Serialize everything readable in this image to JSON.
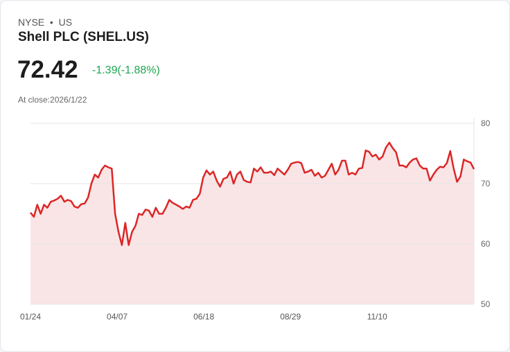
{
  "header": {
    "exchange": "NYSE",
    "sep": "•",
    "country": "US",
    "title": "Shell PLC (SHEL.US)",
    "price": "72.42",
    "change": "-1.39(-1.88%)",
    "close_label": "At close:2026/1/22"
  },
  "colors": {
    "line": "#dc2626",
    "fill": "#f9e5e6",
    "change": "#1ea650"
  },
  "chart_data": {
    "type": "area",
    "title": "",
    "xlabel": "",
    "ylabel": "",
    "ylim": [
      50,
      80
    ],
    "yticks": [
      "80",
      "70",
      "60",
      "50"
    ],
    "ytick_values": [
      80,
      70,
      60,
      50
    ],
    "xticks": [
      "01/24",
      "04/07",
      "06/18",
      "08/29",
      "11/10"
    ],
    "xtick_index": [
      0,
      25.6,
      51.2,
      76.8,
      102.4
    ],
    "values": [
      65.2,
      64.5,
      66.5,
      65,
      66.5,
      66,
      67,
      67.2,
      67.5,
      68,
      67,
      67.3,
      67.1,
      66.2,
      66,
      66.6,
      66.7,
      67.7,
      70,
      71.5,
      71,
      72.3,
      73,
      72.7,
      72.5,
      65,
      62,
      59.8,
      63.5,
      59.8,
      62,
      63,
      65,
      64.8,
      65.7,
      65.5,
      64.5,
      66,
      65,
      65,
      66,
      67.3,
      66.8,
      66.5,
      66.2,
      65.8,
      66.2,
      66,
      67.3,
      67.5,
      68.3,
      71,
      72.2,
      71.5,
      72,
      70.5,
      69.5,
      70.8,
      71,
      72,
      70,
      71.5,
      72,
      70.6,
      70.3,
      70.2,
      72.5,
      72,
      72.7,
      71.8,
      71.8,
      72,
      71.4,
      72.5,
      72,
      71.5,
      72.3,
      73.3,
      73.5,
      73.6,
      73.4,
      71.8,
      72,
      72.3,
      71.3,
      71.8,
      71,
      71.3,
      72.3,
      73.3,
      71.5,
      72.3,
      73.8,
      73.8,
      71.5,
      71.8,
      71.5,
      72.5,
      72.6,
      75.5,
      75.3,
      74.5,
      74.8,
      74,
      74.5,
      76,
      76.8,
      75.9,
      75.2,
      73,
      73,
      72.7,
      73.5,
      74,
      74.2,
      73,
      72.5,
      72.5,
      70.5,
      71.5,
      72.3,
      72.8,
      72.7,
      73.4,
      75.4,
      72.5,
      70.3,
      71.2,
      74,
      73.7,
      73.5,
      72.4
    ]
  }
}
